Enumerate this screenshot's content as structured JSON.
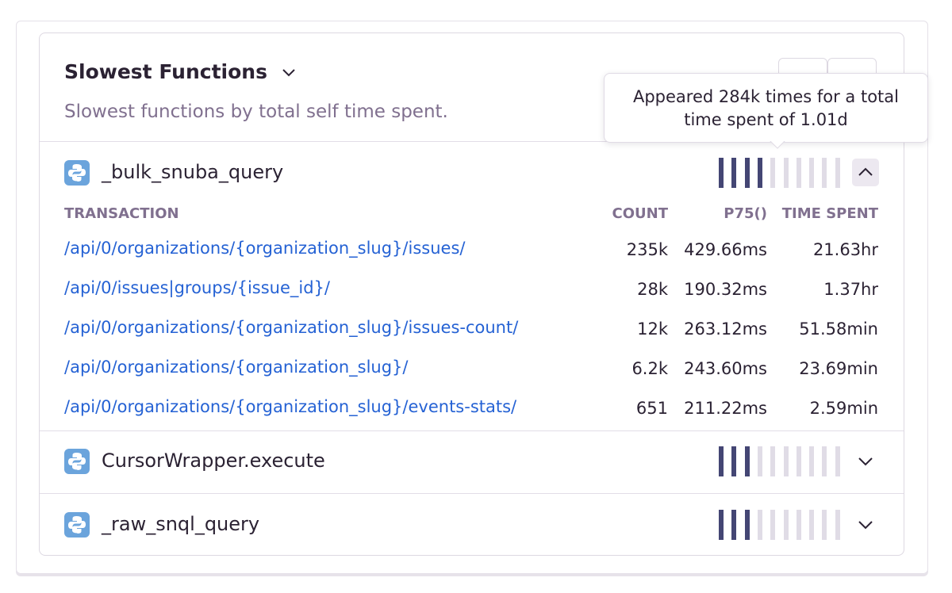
{
  "header": {
    "title": "Slowest Functions",
    "subtitle": "Slowest functions by total self time spent."
  },
  "tooltip": {
    "text": "Appeared 284k times for a total time spent of 1.01d"
  },
  "functions": [
    {
      "name": "_bulk_snuba_query",
      "filled": 4,
      "expanded": true
    },
    {
      "name": "CursorWrapper.execute",
      "filled": 3,
      "expanded": false
    },
    {
      "name": "_raw_snql_query",
      "filled": 3,
      "expanded": false
    }
  ],
  "table": {
    "columns": [
      "TRANSACTION",
      "COUNT",
      "P75()",
      "TIME SPENT"
    ],
    "rows": [
      [
        "/api/0/organizations/{organization_slug}/issues/",
        "235k",
        "429.66ms",
        "21.63hr"
      ],
      [
        "/api/0/issues|groups/{issue_id}/",
        "28k",
        "190.32ms",
        "1.37hr"
      ],
      [
        "/api/0/organizations/{organization_slug}/issues-count/",
        "12k",
        "263.12ms",
        "51.58min"
      ],
      [
        "/api/0/organizations/{organization_slug}/",
        "6.2k",
        "243.60ms",
        "23.69min"
      ],
      [
        "/api/0/organizations/{organization_slug}/events-stats/",
        "651",
        "211.22ms",
        "2.59min"
      ]
    ]
  }
}
